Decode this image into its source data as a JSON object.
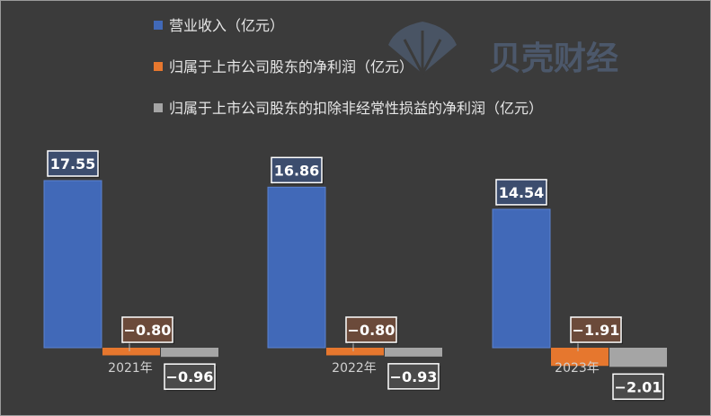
{
  "watermark": {
    "text": "贝壳财经"
  },
  "chart_data": {
    "type": "bar",
    "categories": [
      "2021年",
      "2022年",
      "2023年"
    ],
    "series": [
      {
        "name": "营业收入（亿元）",
        "values": [
          17.55,
          16.86,
          14.54
        ],
        "labels": [
          "17.55",
          "16.86",
          "14.54"
        ],
        "color": "#4169b8"
      },
      {
        "name": "归属于上市公司股东的净利润（亿元）",
        "values": [
          -0.8,
          -0.8,
          -1.91
        ],
        "labels": [
          "−0.80",
          "−0.80",
          "−1.91"
        ],
        "color": "#e6772e"
      },
      {
        "name": "归属于上市公司股东的扣除非经常性损益的净利润（亿元）",
        "values": [
          -0.96,
          -0.93,
          -2.01
        ],
        "labels": [
          "−0.96",
          "−0.93",
          "−2.01"
        ],
        "color": "#a5a5a5"
      }
    ],
    "legend_position": "top",
    "grid": false
  }
}
